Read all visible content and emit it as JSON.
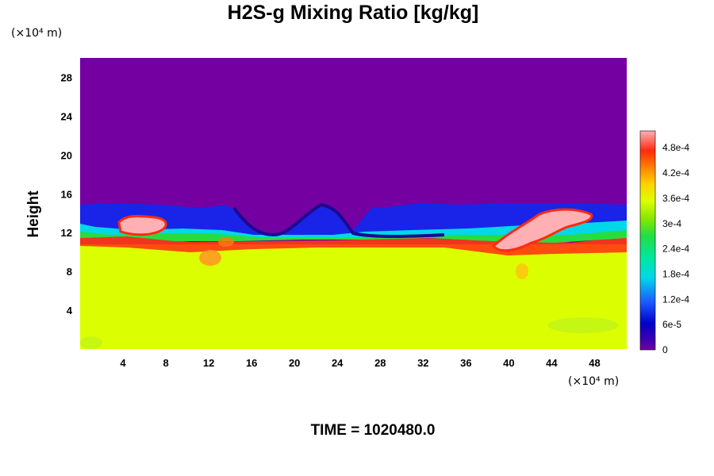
{
  "chart_data": {
    "type": "heatmap",
    "title": "H2S-g Mixing Ratio [kg/kg]",
    "ylabel": "Height",
    "x_unit": "(×10⁴ m)",
    "y_unit": "(×10⁴ m)",
    "xlim": [
      0,
      51
    ],
    "ylim": [
      0,
      30
    ],
    "x_ticks": [
      "4",
      "8",
      "12",
      "16",
      "20",
      "24",
      "28",
      "32",
      "36",
      "40",
      "44",
      "48"
    ],
    "y_ticks": [
      "4",
      "8",
      "12",
      "16",
      "20",
      "24",
      "28"
    ],
    "colorbar_ticks": [
      "0",
      "6e-5",
      "1.2e-4",
      "1.8e-4",
      "2.4e-4",
      "3e-4",
      "3.6e-4",
      "4.2e-4",
      "4.8e-4"
    ],
    "colorbar_range": [
      0,
      0.00052
    ],
    "fields": {
      "upper_layer_value": 0,
      "lower_layer_value": 0.00033,
      "interface_height": 12,
      "hot_patches": [
        {
          "x": 6,
          "y": 12.8,
          "value": 0.00052
        },
        {
          "x": 43,
          "y": 12,
          "value": 0.00052
        }
      ]
    },
    "colors": {
      "upper": "#7400a2",
      "lower": "#dcff00",
      "interface_blue": "#1a24e8",
      "interface_dark": "#1a0a90",
      "cyan": "#00d8e8",
      "green": "#22dd44",
      "red": "#ff2a10",
      "pink": "#ffb0b4"
    }
  },
  "footer": {
    "time_text": "TIME = 1020480.0"
  }
}
